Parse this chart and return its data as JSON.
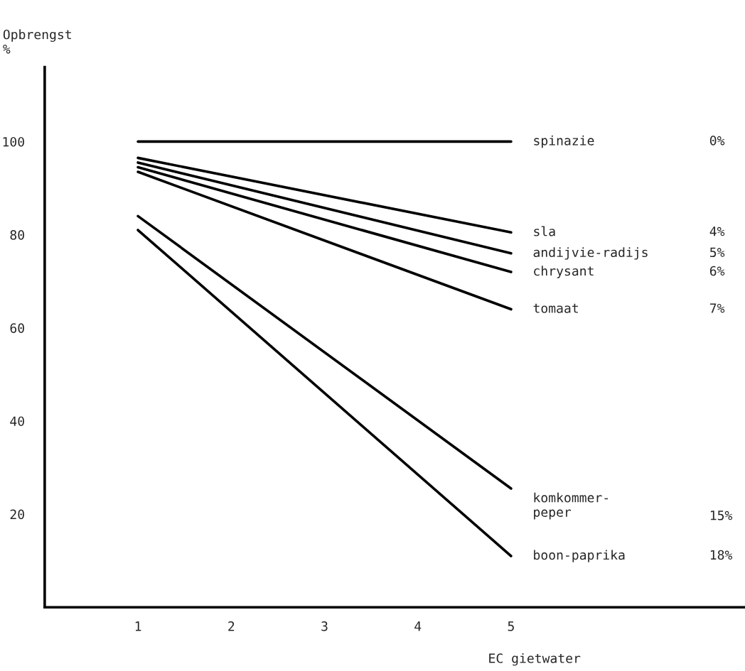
{
  "chart_data": {
    "type": "line",
    "xlabel": "EC gietwater",
    "ylabel": "Opbrengst\n%",
    "x": [
      1,
      5
    ],
    "xlim": [
      0,
      7.5
    ],
    "xticks": [
      1,
      2,
      3,
      4,
      5
    ],
    "ylim": [
      0,
      116
    ],
    "yticks": [
      20,
      40,
      60,
      80,
      100
    ],
    "grid": false,
    "legend": false,
    "marker": "none",
    "line_style": "solid",
    "series": [
      {
        "name": "spinazie",
        "color": "#000000",
        "values": [
          100,
          100
        ]
      },
      {
        "name": "sla",
        "color": "#000000",
        "values": [
          96.5,
          80.5
        ]
      },
      {
        "name": "andijvie-radijs",
        "color": "#000000",
        "values": [
          95.5,
          76
        ]
      },
      {
        "name": "chrysant",
        "color": "#000000",
        "values": [
          94.5,
          72
        ]
      },
      {
        "name": "tomaat",
        "color": "#000000",
        "values": [
          93.5,
          64
        ]
      },
      {
        "name": "komkommer-\npeper",
        "color": "#000000",
        "values": [
          84,
          25.5
        ]
      },
      {
        "name": "boon-paprika",
        "color": "#000000",
        "values": [
          81,
          11
        ]
      }
    ],
    "annotations": [
      "0%",
      "4%",
      "5%",
      "6%",
      "7%",
      "15%",
      "18%"
    ]
  }
}
